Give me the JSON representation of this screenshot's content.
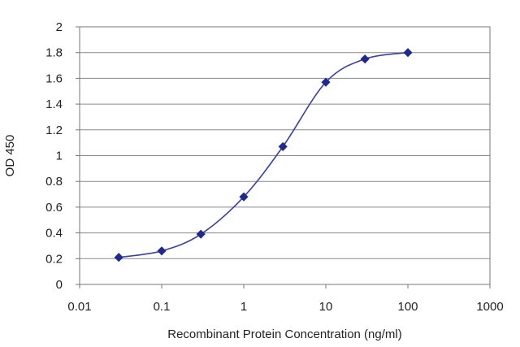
{
  "chart_data": {
    "type": "line",
    "xscale": "log",
    "xlim": [
      0.01,
      1000
    ],
    "ylim": [
      0,
      2
    ],
    "grid": true,
    "xlabel": "Recombinant Protein Concentration (ng/ml)",
    "ylabel": "OD 450",
    "x_tick_labels": [
      "0.01",
      "0.1",
      "1",
      "10",
      "100",
      "1000"
    ],
    "x_ticks": [
      0.01,
      0.1,
      1,
      10,
      100,
      1000
    ],
    "y_tick_labels": [
      "0",
      "0.2",
      "0.4",
      "0.6",
      "0.8",
      "1",
      "1.2",
      "1.4",
      "1.6",
      "1.8",
      "2"
    ],
    "y_ticks": [
      0,
      0.2,
      0.4,
      0.6,
      0.8,
      1.0,
      1.2,
      1.4,
      1.6,
      1.8,
      2.0
    ],
    "series": [
      {
        "x": [
          0.03,
          0.1,
          0.3,
          1,
          3,
          10,
          30,
          100
        ],
        "y": [
          0.21,
          0.26,
          0.39,
          0.68,
          1.07,
          1.57,
          1.75,
          1.8
        ]
      }
    ],
    "colors": {
      "line": "#3b3fa6",
      "marker": "#1f2a8c",
      "grid": "#8a8a8a",
      "axis": "#777777"
    }
  }
}
